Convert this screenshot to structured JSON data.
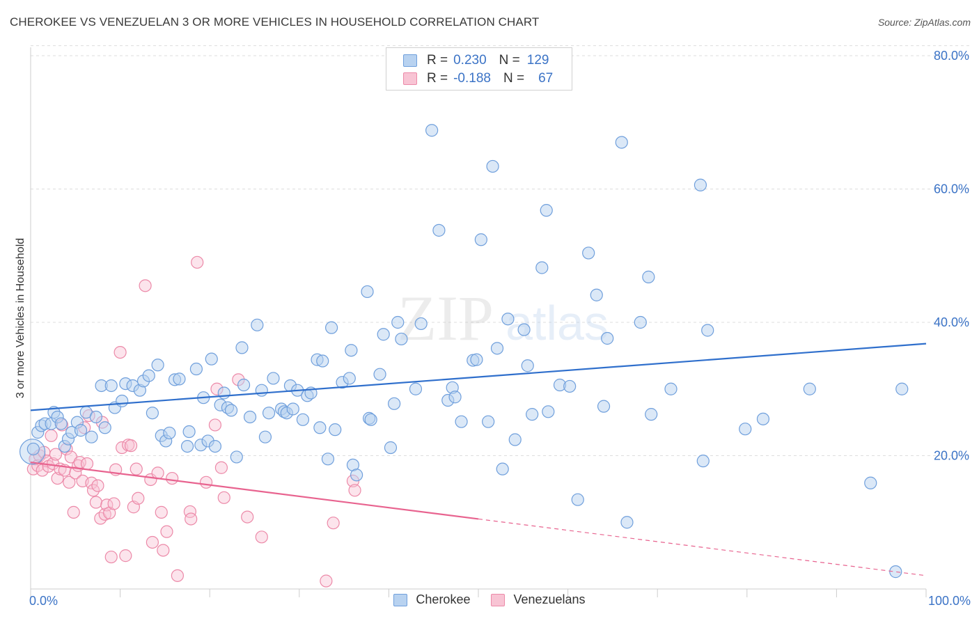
{
  "title": "CHEROKEE VS VENEZUELAN 3 OR MORE VEHICLES IN HOUSEHOLD CORRELATION CHART",
  "source": "Source: ZipAtlas.com",
  "watermark": {
    "zip": "ZIP",
    "atlas": "atlas"
  },
  "legend": {
    "cherokee": {
      "r_label": "R =",
      "r_value": "0.230",
      "n_label": "N =",
      "n_value": "129"
    },
    "venezuelan": {
      "r_label": "R =",
      "r_value": "-0.188",
      "n_label": "N =",
      "n_value": "67"
    }
  },
  "bottom_legend": {
    "cherokee": "Cherokee",
    "venezuelan": "Venezuelans"
  },
  "colors": {
    "cherokee_fill": "#b8d2f0",
    "cherokee_stroke": "#6f9fdc",
    "cherokee_line": "#2f6fcc",
    "venezuelan_fill": "#f8c4d4",
    "venezuelan_stroke": "#ec89a8",
    "venezuelan_line": "#e8638f",
    "tick_text": "#3b73c6",
    "grid": "#dddddd"
  },
  "chart_data": {
    "type": "scatter",
    "title": "CHEROKEE VS VENEZUELAN 3 OR MORE VEHICLES IN HOUSEHOLD CORRELATION CHART",
    "xlabel": "",
    "ylabel": "3 or more Vehicles in Household",
    "xlim": [
      0,
      100
    ],
    "ylim": [
      0,
      85
    ],
    "x_tick_labels": [
      "0.0%",
      "100.0%"
    ],
    "y_ticks": [
      20,
      40,
      60,
      80
    ],
    "y_tick_labels": [
      "20.0%",
      "40.0%",
      "60.0%",
      "80.0%"
    ],
    "grid": true,
    "series": [
      {
        "name": "Cherokee",
        "trend": {
          "x": [
            0,
            100
          ],
          "y": [
            26.8,
            36.8
          ]
        },
        "points": [
          [
            0.3,
            21.0
          ],
          [
            0.8,
            23.5
          ],
          [
            1.2,
            24.5
          ],
          [
            1.6,
            24.8
          ],
          [
            2.3,
            24.8
          ],
          [
            2.6,
            26.5
          ],
          [
            3.0,
            25.8
          ],
          [
            3.4,
            24.8
          ],
          [
            3.8,
            21.4
          ],
          [
            4.2,
            22.5
          ],
          [
            4.6,
            23.5
          ],
          [
            5.2,
            25.0
          ],
          [
            5.6,
            23.8
          ],
          [
            6.8,
            22.8
          ],
          [
            6.2,
            26.5
          ],
          [
            7.3,
            25.8
          ],
          [
            8.3,
            24.2
          ],
          [
            7.9,
            30.5
          ],
          [
            9.4,
            27.2
          ],
          [
            9.0,
            30.5
          ],
          [
            10.2,
            28.2
          ],
          [
            10.6,
            30.8
          ],
          [
            11.4,
            30.5
          ],
          [
            12.2,
            29.8
          ],
          [
            12.6,
            31.2
          ],
          [
            13.2,
            32.0
          ],
          [
            13.6,
            26.4
          ],
          [
            14.2,
            33.6
          ],
          [
            14.6,
            23.0
          ],
          [
            15.1,
            22.2
          ],
          [
            15.5,
            23.4
          ],
          [
            16.1,
            31.4
          ],
          [
            16.6,
            31.5
          ],
          [
            17.5,
            21.4
          ],
          [
            17.7,
            23.6
          ],
          [
            18.5,
            33.0
          ],
          [
            19.0,
            21.6
          ],
          [
            19.3,
            28.7
          ],
          [
            19.8,
            22.2
          ],
          [
            20.2,
            34.5
          ],
          [
            20.6,
            21.4
          ],
          [
            21.2,
            27.6
          ],
          [
            21.6,
            29.4
          ],
          [
            22.0,
            27.2
          ],
          [
            22.4,
            26.8
          ],
          [
            23.0,
            19.8
          ],
          [
            23.6,
            36.2
          ],
          [
            23.8,
            30.6
          ],
          [
            24.5,
            25.8
          ],
          [
            25.3,
            39.6
          ],
          [
            25.8,
            29.8
          ],
          [
            26.2,
            22.8
          ],
          [
            26.6,
            26.4
          ],
          [
            27.1,
            31.6
          ],
          [
            28.0,
            27.0
          ],
          [
            28.3,
            26.6
          ],
          [
            28.6,
            26.4
          ],
          [
            29.0,
            30.5
          ],
          [
            29.3,
            27.0
          ],
          [
            29.8,
            29.8
          ],
          [
            30.4,
            25.4
          ],
          [
            30.9,
            29.0
          ],
          [
            31.3,
            29.4
          ],
          [
            32.0,
            34.4
          ],
          [
            32.3,
            24.2
          ],
          [
            32.6,
            34.2
          ],
          [
            33.2,
            19.5
          ],
          [
            33.6,
            39.2
          ],
          [
            34.0,
            23.9
          ],
          [
            34.8,
            31.0
          ],
          [
            35.6,
            31.6
          ],
          [
            35.8,
            35.8
          ],
          [
            36.0,
            18.6
          ],
          [
            36.4,
            17.1
          ],
          [
            37.6,
            44.6
          ],
          [
            37.8,
            25.6
          ],
          [
            38.0,
            25.4
          ],
          [
            39.0,
            32.2
          ],
          [
            39.4,
            38.2
          ],
          [
            40.2,
            21.2
          ],
          [
            40.6,
            27.8
          ],
          [
            41.0,
            40.0
          ],
          [
            41.4,
            37.5
          ],
          [
            43.0,
            30.0
          ],
          [
            43.6,
            39.8
          ],
          [
            44.8,
            68.8
          ],
          [
            45.6,
            53.8
          ],
          [
            46.6,
            28.3
          ],
          [
            47.1,
            30.2
          ],
          [
            47.4,
            28.8
          ],
          [
            48.1,
            25.1
          ],
          [
            49.4,
            34.3
          ],
          [
            49.8,
            34.4
          ],
          [
            50.3,
            52.4
          ],
          [
            51.1,
            25.1
          ],
          [
            51.6,
            63.4
          ],
          [
            52.1,
            36.1
          ],
          [
            52.7,
            18.0
          ],
          [
            53.3,
            40.5
          ],
          [
            54.1,
            22.4
          ],
          [
            55.1,
            38.9
          ],
          [
            55.5,
            33.5
          ],
          [
            56.0,
            26.2
          ],
          [
            57.1,
            48.2
          ],
          [
            57.6,
            56.8
          ],
          [
            57.8,
            26.6
          ],
          [
            59.1,
            30.6
          ],
          [
            60.2,
            30.4
          ],
          [
            61.1,
            13.4
          ],
          [
            62.3,
            50.4
          ],
          [
            63.2,
            44.1
          ],
          [
            64.0,
            27.4
          ],
          [
            64.4,
            37.6
          ],
          [
            66.0,
            67.0
          ],
          [
            66.6,
            10.0
          ],
          [
            68.1,
            40.0
          ],
          [
            69.0,
            46.8
          ],
          [
            69.3,
            26.2
          ],
          [
            71.5,
            30.0
          ],
          [
            74.8,
            60.6
          ],
          [
            75.1,
            19.2
          ],
          [
            75.6,
            38.8
          ],
          [
            79.8,
            24.0
          ],
          [
            81.8,
            25.5
          ],
          [
            87.0,
            30.0
          ],
          [
            93.8,
            15.9
          ],
          [
            96.6,
            2.6
          ],
          [
            97.3,
            30.0
          ]
        ]
      },
      {
        "name": "Venezuelans",
        "trend": {
          "x": [
            0,
            50
          ],
          "y": [
            19.0,
            10.5
          ]
        },
        "trend_dashed": {
          "x": [
            50,
            100
          ],
          "y": [
            10.5,
            2.0
          ]
        },
        "points": [
          [
            0.3,
            18.0
          ],
          [
            0.5,
            19.5
          ],
          [
            0.8,
            18.5
          ],
          [
            1.0,
            20.0
          ],
          [
            1.3,
            17.8
          ],
          [
            1.5,
            20.5
          ],
          [
            1.8,
            19.2
          ],
          [
            2.0,
            18.4
          ],
          [
            2.3,
            23.0
          ],
          [
            2.5,
            18.8
          ],
          [
            2.8,
            20.2
          ],
          [
            3.0,
            16.6
          ],
          [
            3.3,
            18.0
          ],
          [
            3.5,
            24.6
          ],
          [
            3.8,
            17.8
          ],
          [
            4.0,
            21.0
          ],
          [
            4.3,
            16.0
          ],
          [
            4.5,
            19.8
          ],
          [
            4.8,
            11.5
          ],
          [
            5.0,
            17.4
          ],
          [
            5.3,
            18.5
          ],
          [
            5.5,
            19.0
          ],
          [
            5.8,
            16.2
          ],
          [
            6.0,
            24.2
          ],
          [
            6.3,
            18.8
          ],
          [
            6.5,
            26.0
          ],
          [
            6.8,
            15.9
          ],
          [
            7.0,
            14.8
          ],
          [
            7.3,
            13.0
          ],
          [
            7.5,
            15.5
          ],
          [
            7.8,
            10.6
          ],
          [
            8.0,
            25.0
          ],
          [
            8.3,
            11.2
          ],
          [
            8.5,
            12.6
          ],
          [
            8.8,
            11.4
          ],
          [
            9.0,
            4.8
          ],
          [
            9.3,
            12.8
          ],
          [
            9.5,
            17.9
          ],
          [
            10.0,
            35.5
          ],
          [
            10.2,
            21.2
          ],
          [
            10.6,
            5.0
          ],
          [
            10.9,
            21.6
          ],
          [
            11.2,
            21.5
          ],
          [
            11.5,
            12.3
          ],
          [
            11.8,
            18.0
          ],
          [
            12.0,
            13.6
          ],
          [
            12.8,
            45.5
          ],
          [
            13.4,
            16.4
          ],
          [
            13.6,
            7.0
          ],
          [
            14.2,
            17.4
          ],
          [
            14.6,
            11.5
          ],
          [
            14.8,
            5.8
          ],
          [
            15.2,
            8.6
          ],
          [
            15.8,
            16.6
          ],
          [
            16.4,
            2.0
          ],
          [
            17.8,
            11.6
          ],
          [
            17.9,
            10.5
          ],
          [
            18.6,
            49.0
          ],
          [
            19.6,
            16.0
          ],
          [
            20.6,
            24.6
          ],
          [
            20.8,
            30.0
          ],
          [
            21.3,
            18.2
          ],
          [
            21.6,
            13.7
          ],
          [
            23.2,
            31.4
          ],
          [
            24.2,
            10.8
          ],
          [
            25.8,
            7.8
          ],
          [
            33.0,
            1.2
          ],
          [
            33.8,
            9.9
          ],
          [
            36.0,
            16.2
          ],
          [
            36.2,
            14.8
          ]
        ]
      }
    ]
  }
}
